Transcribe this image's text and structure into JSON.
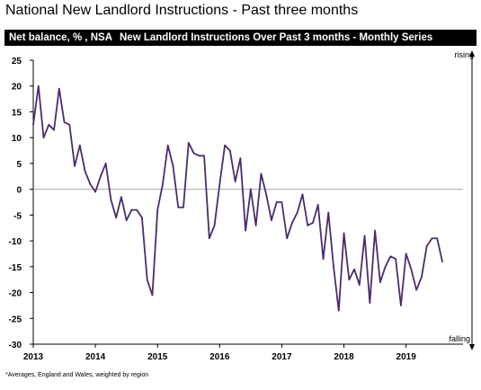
{
  "title": "National New Landlord Instructions - Past three months",
  "banner": {
    "left": "Net balance, % , NSA",
    "right": "New Landlord Instructions Over Past 3 months - Monthly Series"
  },
  "footnote": "*Averages, England and Wales, weighted by region",
  "chart_data": {
    "type": "line",
    "title": "New Landlord Instructions Over Past 3 months - Monthly Series",
    "ylabel": "Net balance, % , NSA",
    "ylim": [
      -30,
      25
    ],
    "yticks": [
      25,
      20,
      15,
      10,
      5,
      0,
      -5,
      -10,
      -15,
      -20,
      -25,
      -30
    ],
    "xlim": [
      "2013-01",
      "2019-12"
    ],
    "xticks": [
      "2013",
      "2014",
      "2015",
      "2016",
      "2017",
      "2018",
      "2019"
    ],
    "arrow_labels": {
      "top": "rising",
      "bottom": "falling"
    },
    "grid": false,
    "line_color": "#4b2c6e",
    "zero_line_color": "#aaaaaa",
    "series": [
      {
        "values": [
          [
            "2013-01",
            12.5
          ],
          [
            "2013-02",
            20.0
          ],
          [
            "2013-03",
            10.0
          ],
          [
            "2013-04",
            12.5
          ],
          [
            "2013-05",
            11.5
          ],
          [
            "2013-06",
            19.5
          ],
          [
            "2013-07",
            13.0
          ],
          [
            "2013-08",
            12.5
          ],
          [
            "2013-09",
            4.5
          ],
          [
            "2013-10",
            8.5
          ],
          [
            "2013-11",
            3.5
          ],
          [
            "2013-12",
            1.0
          ],
          [
            "2014-01",
            -0.5
          ],
          [
            "2014-02",
            2.5
          ],
          [
            "2014-03",
            5.0
          ],
          [
            "2014-04",
            -2.0
          ],
          [
            "2014-05",
            -5.5
          ],
          [
            "2014-06",
            -1.5
          ],
          [
            "2014-07",
            -6.0
          ],
          [
            "2014-08",
            -4.0
          ],
          [
            "2014-09",
            -4.0
          ],
          [
            "2014-10",
            -5.5
          ],
          [
            "2014-11",
            -17.5
          ],
          [
            "2014-12",
            -20.5
          ],
          [
            "2015-01",
            -4.0
          ],
          [
            "2015-02",
            1.0
          ],
          [
            "2015-03",
            8.5
          ],
          [
            "2015-04",
            4.5
          ],
          [
            "2015-05",
            -3.5
          ],
          [
            "2015-06",
            -3.5
          ],
          [
            "2015-07",
            9.0
          ],
          [
            "2015-08",
            7.0
          ],
          [
            "2015-09",
            6.5
          ],
          [
            "2015-10",
            6.5
          ],
          [
            "2015-11",
            -9.5
          ],
          [
            "2015-12",
            -7.0
          ],
          [
            "2016-01",
            1.0
          ],
          [
            "2016-02",
            8.5
          ],
          [
            "2016-03",
            7.5
          ],
          [
            "2016-04",
            1.5
          ],
          [
            "2016-05",
            6.0
          ],
          [
            "2016-06",
            -8.0
          ],
          [
            "2016-07",
            0.0
          ],
          [
            "2016-08",
            -7.0
          ],
          [
            "2016-09",
            3.0
          ],
          [
            "2016-10",
            -1.0
          ],
          [
            "2016-11",
            -6.0
          ],
          [
            "2016-12",
            -2.5
          ],
          [
            "2017-01",
            -2.5
          ],
          [
            "2017-02",
            -9.5
          ],
          [
            "2017-03",
            -6.5
          ],
          [
            "2017-04",
            -4.5
          ],
          [
            "2017-05",
            -1.0
          ],
          [
            "2017-06",
            -7.0
          ],
          [
            "2017-07",
            -6.5
          ],
          [
            "2017-08",
            -3.0
          ],
          [
            "2017-09",
            -13.5
          ],
          [
            "2017-10",
            -4.5
          ],
          [
            "2017-11",
            -15.0
          ],
          [
            "2017-12",
            -23.5
          ],
          [
            "2018-01",
            -8.5
          ],
          [
            "2018-02",
            -17.5
          ],
          [
            "2018-03",
            -15.5
          ],
          [
            "2018-04",
            -18.5
          ],
          [
            "2018-05",
            -9.0
          ],
          [
            "2018-06",
            -22.0
          ],
          [
            "2018-07",
            -8.0
          ],
          [
            "2018-08",
            -18.0
          ],
          [
            "2018-09",
            -15.0
          ],
          [
            "2018-10",
            -13.0
          ],
          [
            "2018-11",
            -13.5
          ],
          [
            "2018-12",
            -22.5
          ],
          [
            "2019-01",
            -12.5
          ],
          [
            "2019-02",
            -15.5
          ],
          [
            "2019-03",
            -19.5
          ],
          [
            "2019-04",
            -17.0
          ],
          [
            "2019-05",
            -11.0
          ],
          [
            "2019-06",
            -9.5
          ],
          [
            "2019-07",
            -9.5
          ],
          [
            "2019-08",
            -14.0
          ]
        ]
      }
    ]
  }
}
